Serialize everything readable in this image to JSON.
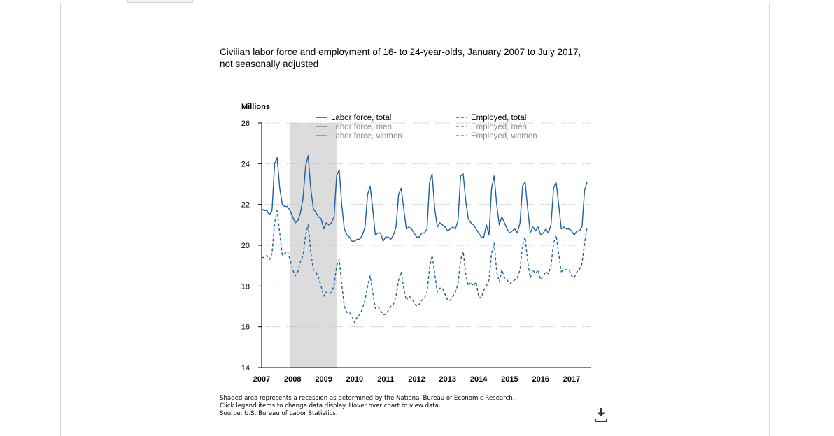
{
  "chart_data": {
    "type": "line",
    "title": "Civilian labor force and employment of 16- to 24-year-olds, January 2007 to July 2017, not seasonally adjusted",
    "ylabel": "Millions",
    "ylim": [
      14,
      26
    ],
    "yticks": [
      "14",
      "16",
      "18",
      "20",
      "22",
      "24",
      "26"
    ],
    "xlim": [
      2007,
      2017.58
    ],
    "xticks": [
      "2007",
      "2008",
      "2009",
      "2010",
      "2011",
      "2012",
      "2013",
      "2014",
      "2015",
      "2016",
      "2017"
    ],
    "grid": "horizontal dotted",
    "legend_position": "top",
    "recession": [
      2007.92,
      2009.42
    ],
    "colors": {
      "active": "#1f5fa8",
      "inactive": "#8c8c8c",
      "recession": "#dcdcdc"
    },
    "legend": [
      {
        "name": "Labor force, total",
        "style": "solid",
        "active": true
      },
      {
        "name": "Labor force, men",
        "style": "solid",
        "active": false
      },
      {
        "name": "Labor force, women",
        "style": "solid",
        "active": false
      },
      {
        "name": "Employed, total",
        "style": "dashed",
        "active": true
      },
      {
        "name": "Employed, men",
        "style": "dashed",
        "active": false
      },
      {
        "name": "Employed, women",
        "style": "dashed",
        "active": false
      }
    ],
    "series": [
      {
        "name": "Labor force, total",
        "style": "solid",
        "start": "2007-01",
        "values": [
          21.8,
          21.7,
          21.7,
          21.5,
          21.7,
          24.0,
          24.3,
          22.8,
          22.0,
          21.9,
          21.9,
          21.7,
          21.4,
          21.1,
          21.2,
          21.6,
          22.3,
          23.9,
          24.4,
          22.8,
          21.8,
          21.6,
          21.4,
          21.3,
          20.8,
          21.1,
          21.0,
          21.1,
          21.4,
          23.4,
          23.7,
          22.0,
          20.8,
          20.5,
          20.4,
          20.2,
          20.2,
          20.3,
          20.3,
          20.5,
          20.9,
          22.5,
          22.9,
          21.8,
          20.5,
          20.6,
          20.6,
          20.2,
          20.4,
          20.4,
          20.3,
          20.5,
          20.9,
          22.5,
          22.8,
          21.8,
          20.8,
          20.9,
          20.8,
          20.6,
          20.4,
          20.4,
          20.6,
          20.6,
          20.8,
          23.1,
          23.5,
          21.8,
          20.9,
          21.1,
          21.0,
          20.9,
          20.7,
          20.8,
          20.9,
          20.8,
          21.2,
          23.4,
          23.5,
          22.2,
          21.3,
          21.1,
          21.0,
          20.8,
          20.6,
          20.4,
          20.4,
          21.0,
          20.5,
          22.8,
          23.4,
          22.0,
          21.0,
          21.4,
          21.1,
          20.8,
          20.6,
          20.7,
          20.8,
          20.6,
          21.1,
          22.9,
          23.1,
          21.8,
          20.6,
          20.9,
          20.7,
          20.9,
          20.5,
          20.6,
          20.8,
          20.6,
          21.0,
          22.8,
          23.1,
          22.0,
          20.8,
          20.9,
          20.8,
          20.8,
          20.7,
          20.5,
          20.7,
          20.7,
          20.9,
          22.7,
          23.1
        ]
      },
      {
        "name": "Employed, total",
        "style": "dashed",
        "start": "2007-01",
        "values": [
          19.4,
          19.4,
          19.5,
          19.3,
          19.6,
          21.1,
          21.7,
          20.6,
          19.5,
          19.6,
          19.7,
          19.3,
          18.8,
          18.5,
          18.7,
          19.2,
          19.5,
          20.5,
          21.0,
          19.7,
          18.8,
          18.7,
          18.4,
          18.0,
          17.5,
          17.7,
          17.6,
          17.7,
          18.0,
          19.0,
          19.3,
          18.1,
          17.0,
          16.7,
          16.7,
          16.5,
          16.2,
          16.5,
          16.6,
          16.9,
          17.3,
          18.0,
          18.5,
          17.7,
          16.9,
          17.0,
          16.8,
          16.6,
          16.6,
          16.8,
          17.0,
          17.1,
          17.5,
          18.3,
          18.7,
          17.9,
          17.3,
          17.5,
          17.4,
          17.2,
          17.0,
          17.1,
          17.3,
          17.4,
          17.7,
          18.9,
          19.5,
          18.6,
          17.7,
          17.9,
          17.9,
          17.6,
          17.3,
          17.3,
          17.5,
          17.7,
          18.1,
          19.3,
          19.7,
          18.6,
          18.0,
          18.2,
          18.0,
          18.2,
          17.5,
          17.4,
          17.8,
          18.0,
          18.3,
          19.6,
          20.1,
          18.7,
          18.2,
          18.8,
          18.4,
          18.3,
          18.1,
          18.2,
          18.3,
          18.4,
          18.8,
          20.0,
          20.4,
          19.2,
          18.4,
          18.8,
          18.6,
          18.8,
          18.3,
          18.5,
          18.7,
          18.6,
          19.0,
          20.1,
          20.5,
          19.6,
          18.7,
          18.8,
          18.8,
          18.8,
          18.5,
          18.4,
          18.7,
          18.8,
          19.1,
          20.1,
          20.9
        ]
      }
    ]
  },
  "footnotes": [
    "Shaded area represents a recession as determined by the National Bureau of Economic Research.",
    "Click legend items to change data display. Hover over chart to view data.",
    "Source: U.S. Bureau of Labor Statistics."
  ],
  "icons": {
    "download": "download-icon"
  }
}
